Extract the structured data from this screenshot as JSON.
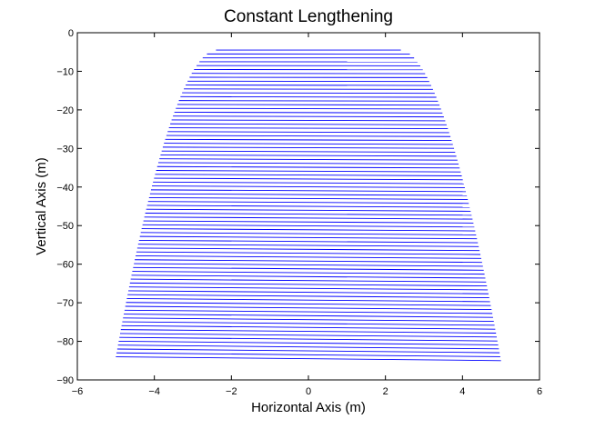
{
  "chart_data": {
    "type": "line",
    "title": "Constant Lengthening",
    "xlabel": "Horizontal Axis (m)",
    "ylabel": "Vertical Axis (m)",
    "xlim": [
      -6,
      6
    ],
    "ylim": [
      -90,
      0
    ],
    "xticks": [
      -6,
      -4,
      -2,
      0,
      2,
      4,
      6
    ],
    "yticks": [
      0,
      -10,
      -20,
      -30,
      -40,
      -50,
      -60,
      -70,
      -80,
      -90
    ],
    "xtick_labels": [
      "−6",
      "−4",
      "−2",
      "0",
      "2",
      "4",
      "6"
    ],
    "ytick_labels": [
      "0",
      "−10",
      "−20",
      "−30",
      "−40",
      "−50",
      "−60",
      "−70",
      "−80",
      "−90"
    ],
    "grid": false,
    "legend": false,
    "series_color": "#0000ff",
    "segments_description": "stacked nearly-horizontal segments; each segment runs from (x_left, y_left) to (x_right, y_right)",
    "envelope": {
      "top": {
        "y": -4.5,
        "x_left": -2.4,
        "x_right": 2.4
      },
      "bottom": {
        "y_left": -84.0,
        "y_right": -85.0,
        "x_left": -5.0,
        "x_right": 5.0
      },
      "segment_count": 80
    }
  }
}
